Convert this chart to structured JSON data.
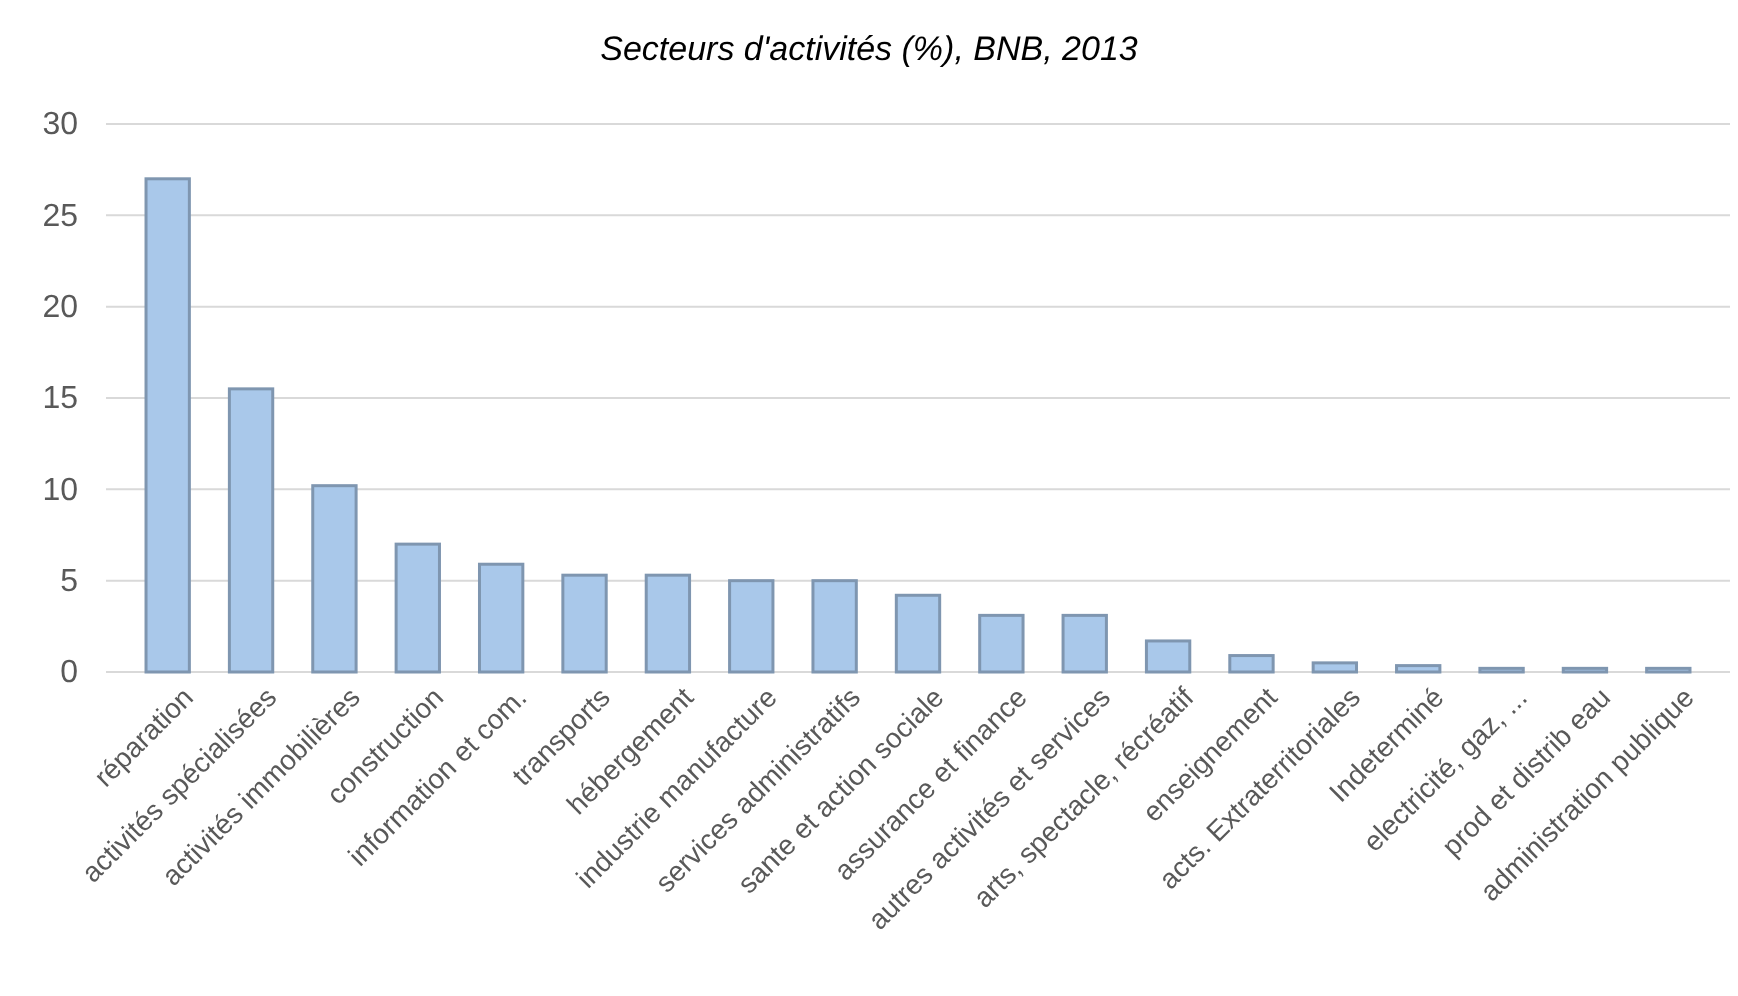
{
  "chart_data": {
    "type": "bar",
    "title": "Secteurs d'activités (%), BNB, 2013",
    "categories": [
      "réparation",
      "activités spécialisées",
      "activités immobilières",
      "construction",
      "information et com.",
      "transports",
      "hébergement",
      "industrie manufacture",
      "services administratifs",
      "sante et action sociale",
      "assurance et finance",
      "autres activités et services",
      "arts, spectacle, récréatif",
      "enseignement",
      "acts. Extraterritoriales",
      "Indeterminé",
      "electricité, gaz, ...",
      "prod et distrib eau",
      "administration publique"
    ],
    "values": [
      27,
      15.5,
      10.2,
      7,
      5.9,
      5.3,
      5.3,
      5,
      5,
      4.2,
      3.1,
      3.1,
      1.7,
      0.9,
      0.5,
      0.35,
      0.2,
      0.2,
      0.2
    ],
    "color": "#a9c8ea",
    "ylim": [
      0,
      30
    ],
    "yticks": [
      0,
      5,
      10,
      15,
      20,
      25,
      30
    ],
    "grid": "y"
  }
}
